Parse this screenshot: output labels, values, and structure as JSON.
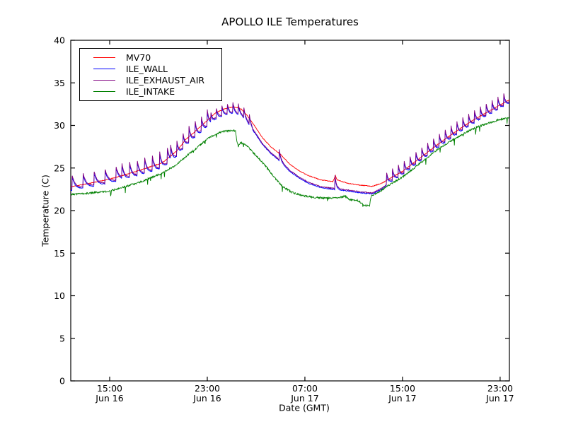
{
  "chart_data": {
    "type": "line",
    "title": "APOLLO ILE Temperatures",
    "xlabel": "Date (GMT)",
    "ylabel": "Temperature (C)",
    "background": "#ffffff",
    "axis_color": "#000000",
    "grid": false,
    "legend_position": "upper left",
    "x_range": [
      11.81,
      47.76
    ],
    "y_range": [
      0,
      40
    ],
    "y_ticks": [
      0,
      5,
      10,
      15,
      20,
      25,
      30,
      35,
      40
    ],
    "x_ticks": [
      {
        "t": 15,
        "time": "15:00",
        "date": "Jun 16"
      },
      {
        "t": 23,
        "time": "23:00",
        "date": "Jun 16"
      },
      {
        "t": 31,
        "time": "07:00",
        "date": "Jun 17"
      },
      {
        "t": 39,
        "time": "15:00",
        "date": "Jun 17"
      },
      {
        "t": 47,
        "time": "23:00",
        "date": "Jun 17"
      }
    ],
    "noise_seed": 11,
    "series": [
      {
        "name": "MV70",
        "color": "#ff0000",
        "jitter": 0.04,
        "points": [
          [
            11.81,
            22.8
          ],
          [
            13,
            23.1
          ],
          [
            14,
            23.4
          ],
          [
            15,
            23.7
          ],
          [
            16,
            24.1
          ],
          [
            17.6,
            24.8
          ],
          [
            19.3,
            25.6
          ],
          [
            20.5,
            27.0
          ],
          [
            21.2,
            28.3
          ],
          [
            22,
            29.3
          ],
          [
            23,
            30.6
          ],
          [
            23.7,
            31.5
          ],
          [
            24.5,
            32.0
          ],
          [
            25.2,
            32.2
          ],
          [
            25.8,
            31.9
          ],
          [
            26.3,
            31.1
          ],
          [
            26.9,
            29.9
          ],
          [
            27.5,
            28.6
          ],
          [
            28.2,
            27.5
          ],
          [
            29,
            26.6
          ],
          [
            29.8,
            25.4
          ],
          [
            30.5,
            24.7
          ],
          [
            31.3,
            24.1
          ],
          [
            32.3,
            23.6
          ],
          [
            33.3,
            23.4
          ],
          [
            33.5,
            24.1
          ],
          [
            33.65,
            23.6
          ],
          [
            34.5,
            23.2
          ],
          [
            35.5,
            23.0
          ],
          [
            36.5,
            22.85
          ],
          [
            37.3,
            23.2
          ],
          [
            38,
            23.8
          ],
          [
            39,
            24.6
          ],
          [
            40,
            25.7
          ],
          [
            41,
            26.8
          ],
          [
            42,
            27.9
          ],
          [
            43,
            28.9
          ],
          [
            44,
            29.9
          ],
          [
            45,
            30.8
          ],
          [
            46,
            31.6
          ],
          [
            47,
            32.4
          ],
          [
            47.75,
            33.0
          ]
        ]
      },
      {
        "name": "ILE_WALL",
        "color": "#0000ff",
        "jitter": 0.05,
        "points": [
          [
            11.81,
            22.35
          ],
          [
            13,
            22.63
          ],
          [
            14,
            22.9
          ],
          [
            15,
            23.2
          ],
          [
            16,
            23.55
          ],
          [
            17.6,
            24.18
          ],
          [
            19.3,
            24.9
          ],
          [
            20.5,
            26.28
          ],
          [
            21.2,
            27.55
          ],
          [
            22,
            28.55
          ],
          [
            23,
            29.8
          ],
          [
            23.7,
            30.7
          ],
          [
            24.5,
            31.2
          ],
          [
            25.2,
            31.4
          ],
          [
            25.8,
            31.1
          ],
          [
            26.3,
            30.3
          ],
          [
            26.9,
            29.1
          ],
          [
            27.5,
            27.8
          ],
          [
            28.2,
            26.7
          ],
          [
            29,
            25.75
          ],
          [
            29.8,
            24.55
          ],
          [
            30.5,
            23.85
          ],
          [
            31.3,
            23.2
          ],
          [
            32.3,
            22.7
          ],
          [
            33.3,
            22.5
          ],
          [
            34.5,
            22.3
          ],
          [
            35.5,
            22.1
          ],
          [
            36.5,
            21.95
          ],
          [
            37.3,
            22.5
          ],
          [
            38,
            23.3
          ],
          [
            39,
            24.15
          ],
          [
            40,
            25.25
          ],
          [
            41,
            26.35
          ],
          [
            42,
            27.45
          ],
          [
            43,
            28.45
          ],
          [
            44,
            29.45
          ],
          [
            45,
            30.35
          ],
          [
            46,
            31.15
          ],
          [
            47,
            31.95
          ],
          [
            47.75,
            32.6
          ]
        ],
        "spikes": [
          {
            "start": 11.9,
            "end": 16.0,
            "period": 0.9,
            "amp": 1.7,
            "tau": 0.27
          },
          {
            "start": 16.0,
            "end": 20.0,
            "period": 0.62,
            "amp": 1.8,
            "tau": 0.19
          },
          {
            "start": 20.0,
            "end": 23.3,
            "period": 0.5,
            "amp": 1.8,
            "tau": 0.15
          },
          {
            "start": 23.3,
            "end": 26.7,
            "period": 0.45,
            "amp": 1.1,
            "tau": 0.14
          },
          {
            "start": 28.9,
            "end": 29.25,
            "period": 12,
            "amp": 1.2,
            "tau": 0.12
          },
          {
            "start": 33.45,
            "end": 33.85,
            "period": 12,
            "amp": 1.7,
            "tau": 0.12
          },
          {
            "start": 37.7,
            "end": 47.76,
            "period": 0.48,
            "amp": 1.3,
            "tau": 0.14
          }
        ]
      },
      {
        "name": "ILE_EXHAUST_AIR",
        "color": "#800080",
        "jitter": 0.05,
        "points_ref": "ILE_WALL",
        "offset": 0.12,
        "spike_scale": 1.08
      },
      {
        "name": "ILE_INTAKE",
        "color": "#008000",
        "jitter": 0.1,
        "needles": {
          "prob": 0.02,
          "min": 0.3,
          "max": 0.8
        },
        "points": [
          [
            11.81,
            21.9
          ],
          [
            13,
            22.0
          ],
          [
            14,
            22.15
          ],
          [
            15,
            22.3
          ],
          [
            16,
            22.7
          ],
          [
            17.6,
            23.4
          ],
          [
            19.3,
            24.4
          ],
          [
            20.5,
            25.4
          ],
          [
            21.2,
            26.3
          ],
          [
            22,
            27.2
          ],
          [
            23,
            28.4
          ],
          [
            23.7,
            29.0
          ],
          [
            24.3,
            29.3
          ],
          [
            25.3,
            29.4
          ],
          [
            25.42,
            28.2
          ],
          [
            25.55,
            27.5
          ],
          [
            25.7,
            28.0
          ],
          [
            26.2,
            27.7
          ],
          [
            26.9,
            26.6
          ],
          [
            27.8,
            25.2
          ],
          [
            28.5,
            23.9
          ],
          [
            29.2,
            22.8
          ],
          [
            30,
            22.1
          ],
          [
            30.8,
            21.75
          ],
          [
            31.8,
            21.55
          ],
          [
            33,
            21.45
          ],
          [
            33.8,
            21.55
          ],
          [
            34.3,
            21.7
          ],
          [
            34.6,
            21.3
          ],
          [
            35.3,
            21.2
          ],
          [
            35.85,
            20.65
          ],
          [
            36.3,
            20.55
          ],
          [
            36.42,
            21.7
          ],
          [
            37,
            22.1
          ],
          [
            37.8,
            22.9
          ],
          [
            39,
            23.95
          ],
          [
            40,
            25.05
          ],
          [
            41,
            26.2
          ],
          [
            42,
            27.3
          ],
          [
            43,
            28.2
          ],
          [
            44,
            29.05
          ],
          [
            45,
            29.75
          ],
          [
            46,
            30.25
          ],
          [
            47,
            30.7
          ],
          [
            47.75,
            30.9
          ]
        ]
      }
    ]
  }
}
